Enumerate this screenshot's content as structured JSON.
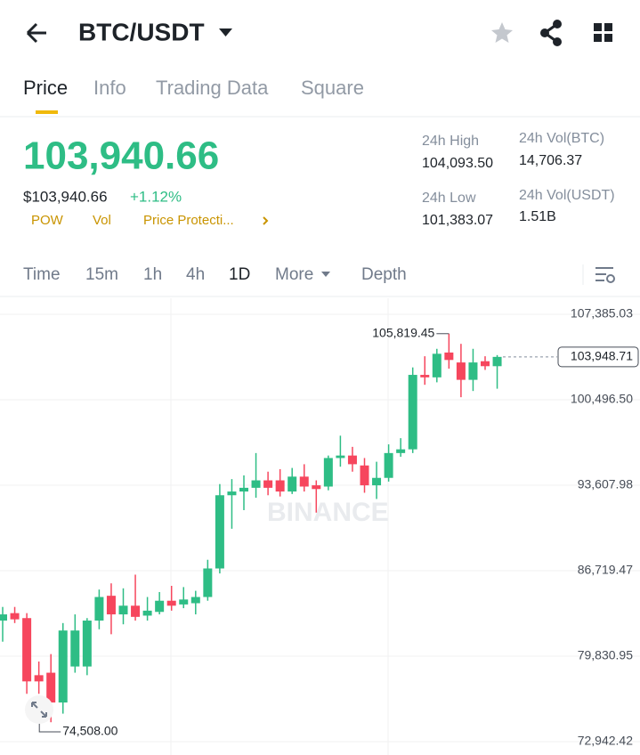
{
  "header": {
    "pair": "BTC/USDT"
  },
  "tabs": [
    "Price",
    "Info",
    "Trading Data",
    "Square"
  ],
  "price": {
    "last": "103,940.66",
    "usd": "$103,940.66",
    "change": "+1.12%",
    "tags": [
      "POW",
      "Vol",
      "Price Protecti..."
    ]
  },
  "stats": [
    {
      "label": "24h High",
      "value": "104,093.50"
    },
    {
      "label": "24h Vol(BTC)",
      "value": "14,706.37"
    },
    {
      "label": "24h Low",
      "value": "101,383.07"
    },
    {
      "label": "24h Vol(USDT)",
      "value": "1.51B"
    }
  ],
  "timeframes": [
    "Time",
    "15m",
    "1h",
    "4h",
    "1D",
    "More",
    "Depth"
  ],
  "chart_data": {
    "type": "candlestick",
    "watermark": "BINANCE",
    "up_color": "#2ebd85",
    "down_color": "#f6465d",
    "ylim": [
      72084,
      108673
    ],
    "yticks": [
      {
        "value": 72942.42,
        "label": "72,942.42"
      },
      {
        "value": 79830.95,
        "label": "79,830.95"
      },
      {
        "value": 86719.47,
        "label": "86,719.47"
      },
      {
        "value": 93607.98,
        "label": "93,607.98"
      },
      {
        "value": 100496.5,
        "label": "100,496.50"
      },
      {
        "value": 107385.03,
        "label": "107,385.03"
      }
    ],
    "grid": true,
    "open": [
      82700,
      83300,
      82900,
      78300,
      78500,
      76100,
      79000,
      79000,
      82700,
      84700,
      83200,
      83900,
      83100,
      83400,
      84300,
      84000,
      84100,
      84600,
      86900,
      92800,
      93100,
      93400,
      94000,
      94000,
      93100,
      94300,
      93600,
      93500,
      95800,
      96000,
      95200,
      93600,
      94200,
      96200,
      96500,
      102500,
      102300,
      104300,
      103500,
      102100,
      103600,
      103200
    ],
    "high": [
      83800,
      83800,
      83300,
      79400,
      80000,
      82500,
      83200,
      82900,
      85200,
      85700,
      85300,
      86400,
      84600,
      85000,
      85500,
      85400,
      85100,
      87600,
      93700,
      94100,
      94400,
      96200,
      94700,
      94900,
      95000,
      95300,
      94000,
      96000,
      97600,
      96700,
      95800,
      95500,
      96900,
      97400,
      103100,
      104000,
      104600,
      105819.45,
      105000,
      104600,
      104000,
      104093.5
    ],
    "low": [
      81000,
      82500,
      76800,
      76800,
      74508,
      75200,
      78500,
      78300,
      82000,
      81600,
      82400,
      82700,
      82700,
      83200,
      83500,
      83700,
      83200,
      84300,
      86500,
      90100,
      91600,
      92600,
      92800,
      92700,
      92900,
      93100,
      91400,
      93200,
      95100,
      94700,
      93000,
      92500,
      93900,
      95900,
      96200,
      101700,
      101900,
      103000,
      100700,
      101200,
      102900,
      101383.07
    ],
    "close": [
      83200,
      82800,
      77800,
      77800,
      76100,
      81900,
      81900,
      82700,
      84600,
      83200,
      83900,
      83000,
      83500,
      84300,
      83900,
      84400,
      84600,
      86900,
      92800,
      93100,
      93400,
      94000,
      93400,
      93100,
      94300,
      93500,
      93300,
      95800,
      96000,
      95300,
      93600,
      94200,
      96200,
      96500,
      102500,
      102300,
      104200,
      103700,
      102100,
      103500,
      103200,
      103948.71
    ],
    "annotations": [
      {
        "value": 105819.45,
        "label": "105,819.45"
      },
      {
        "value": 74508,
        "label": "74,508.00"
      },
      {
        "value": 103948.71,
        "label": "103,948.71"
      }
    ]
  }
}
